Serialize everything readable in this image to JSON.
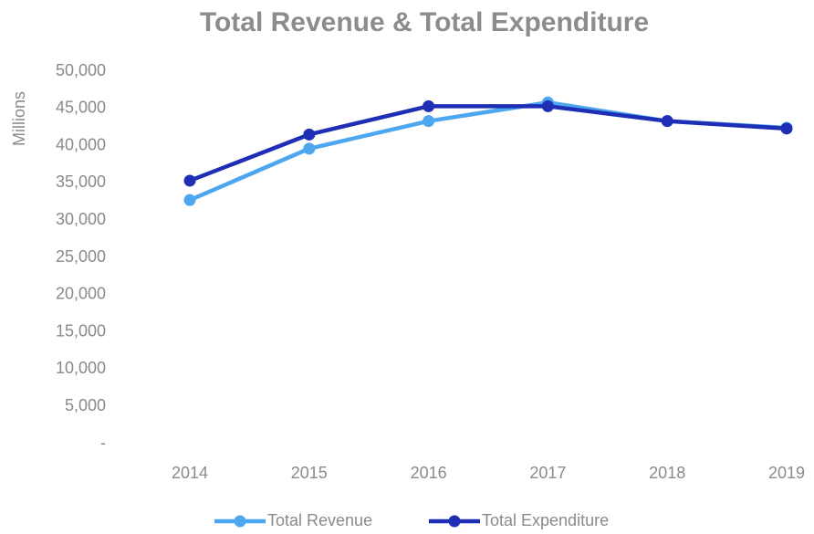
{
  "chart_data": {
    "type": "line",
    "title": "Total Revenue & Total Expenditure",
    "y_label": "Millions",
    "categories": [
      "2014",
      "2015",
      "2016",
      "2017",
      "2018",
      "2019"
    ],
    "series": [
      {
        "name": "Total Revenue",
        "color": "#4da6f0",
        "values": [
          32700,
          39600,
          43300,
          45800,
          43300,
          42400
        ]
      },
      {
        "name": "Total Expenditure",
        "color": "#1f2fb5",
        "values": [
          35300,
          41500,
          45300,
          45300,
          43300,
          42300
        ]
      }
    ],
    "ylim": [
      0,
      50000
    ],
    "yticks": [
      {
        "value": 0,
        "label": "-"
      },
      {
        "value": 5000,
        "label": "5,000"
      },
      {
        "value": 10000,
        "label": "10,000"
      },
      {
        "value": 15000,
        "label": "15,000"
      },
      {
        "value": 20000,
        "label": "20,000"
      },
      {
        "value": 25000,
        "label": "25,000"
      },
      {
        "value": 30000,
        "label": "30,000"
      },
      {
        "value": 35000,
        "label": "35,000"
      },
      {
        "value": 40000,
        "label": "40,000"
      },
      {
        "value": 45000,
        "label": "45,000"
      },
      {
        "value": 50000,
        "label": "50,000"
      }
    ],
    "grid": false,
    "legend": "bottom"
  }
}
